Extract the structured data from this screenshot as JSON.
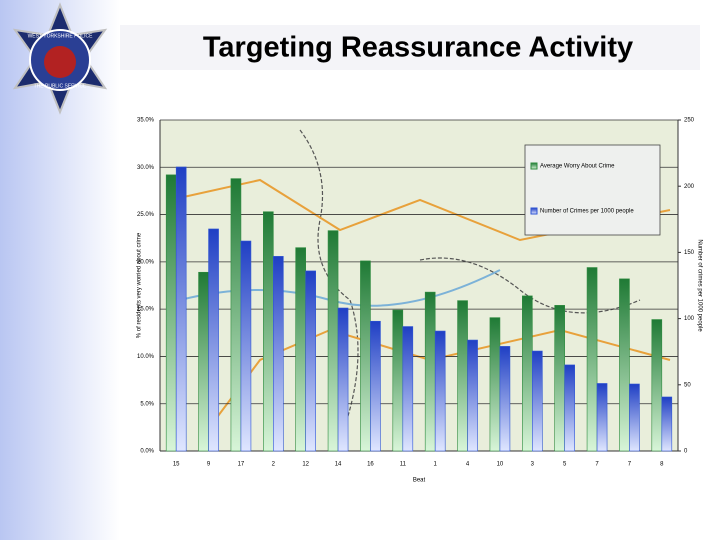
{
  "header": {
    "title": "Targeting Reassurance Activity",
    "logo_text": "WEST YORKSHIRE POLICE",
    "logo_motto": "THE PUBLIC SERVICE"
  },
  "chart_data": {
    "type": "bar",
    "categories": [
      "15",
      "9",
      "17",
      "2",
      "12",
      "14",
      "16",
      "11",
      "1",
      "4",
      "10",
      "3",
      "5",
      "7",
      "7",
      "8"
    ],
    "series": [
      {
        "name": "Average Worry About Crime",
        "color": "#2e8b3e",
        "values": [
          29.2,
          18.9,
          28.8,
          25.3,
          21.5,
          23.3,
          20.1,
          14.9,
          16.8,
          15.9,
          14.1,
          16.4,
          15.4,
          19.4,
          18.2,
          13.9
        ]
      },
      {
        "name": "Number of Crimes per 1000 people",
        "color": "#2f55d4",
        "axis": "y2",
        "values": [
          214.5,
          167.7,
          158.6,
          147,
          136,
          108,
          98,
          94,
          90.6,
          83.8,
          79,
          75.5,
          65,
          51,
          50.6,
          40.8
        ]
      }
    ],
    "ylim": [
      0,
      35
    ],
    "yticks": [
      {
        "value": 0,
        "label": "0.0%"
      },
      {
        "value": 5,
        "label": "5.0%"
      },
      {
        "value": 10,
        "label": "10.0%"
      },
      {
        "value": 15,
        "label": "15.0%"
      },
      {
        "value": 20,
        "label": "20.0%"
      },
      {
        "value": 25,
        "label": "25.0%"
      },
      {
        "value": 30,
        "label": "30.0%"
      },
      {
        "value": 35,
        "label": "35.0%"
      }
    ],
    "y2lim": [
      0,
      250
    ],
    "y2ticks": [
      0,
      50,
      100,
      150,
      200,
      250
    ],
    "ylabel": "% of residents very worried about crime",
    "y2label": "Number of crimes per 1000 people",
    "xlabel": "Beat",
    "grid": true,
    "legend": "upper right"
  }
}
